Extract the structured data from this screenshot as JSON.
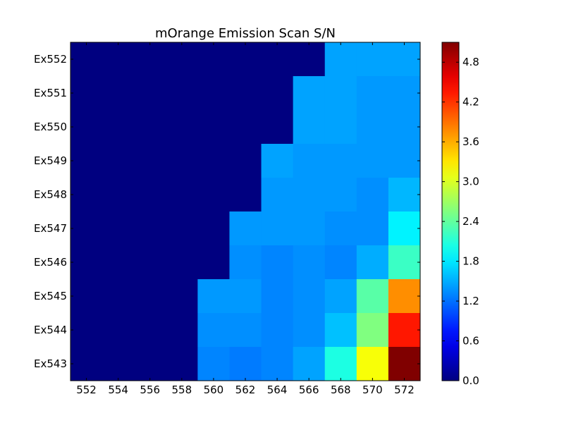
{
  "chart_data": {
    "type": "heatmap",
    "title": "mOrange Emission Scan S/N",
    "x_tick_labels": [
      "552",
      "554",
      "556",
      "558",
      "560",
      "562",
      "564",
      "566",
      "568",
      "570",
      "572"
    ],
    "emission_columns": [
      552,
      554,
      556,
      558,
      560,
      562,
      564,
      566,
      568,
      570,
      572
    ],
    "excitation_rows": [
      "Ex552",
      "Ex551",
      "Ex550",
      "Ex549",
      "Ex548",
      "Ex547",
      "Ex546",
      "Ex545",
      "Ex544",
      "Ex543"
    ],
    "values": [
      [
        0,
        0,
        0,
        0,
        0,
        0,
        0,
        0,
        1.45,
        1.45,
        1.45
      ],
      [
        0,
        0,
        0,
        0,
        0,
        0,
        0,
        1.45,
        1.45,
        1.4,
        1.4
      ],
      [
        0,
        0,
        0,
        0,
        0,
        0,
        0,
        1.45,
        1.45,
        1.4,
        1.4
      ],
      [
        0,
        0,
        0,
        0,
        0,
        0,
        1.45,
        1.4,
        1.4,
        1.4,
        1.4
      ],
      [
        0,
        0,
        0,
        0,
        0,
        0,
        1.4,
        1.4,
        1.4,
        1.35,
        1.55
      ],
      [
        0,
        0,
        0,
        0,
        0,
        1.4,
        1.4,
        1.4,
        1.35,
        1.35,
        1.85
      ],
      [
        0,
        0,
        0,
        0,
        0,
        1.35,
        1.3,
        1.35,
        1.3,
        1.5,
        2.2
      ],
      [
        0,
        0,
        0,
        0,
        1.4,
        1.4,
        1.3,
        1.35,
        1.45,
        2.35,
        3.75
      ],
      [
        0,
        0,
        0,
        0,
        1.35,
        1.35,
        1.3,
        1.35,
        1.6,
        2.55,
        4.35
      ],
      [
        0,
        0,
        0,
        0,
        1.3,
        1.25,
        1.3,
        1.45,
        2.05,
        3.15,
        5.1
      ]
    ],
    "colorbar": {
      "colormap": "jet",
      "vmin": 0,
      "vmax": 5.1,
      "ticks": [
        0.0,
        0.6,
        1.2,
        1.8,
        2.4,
        3.0,
        3.6,
        4.2,
        4.8
      ],
      "tick_labels": [
        "0.0",
        "0.6",
        "1.2",
        "1.8",
        "2.4",
        "3.0",
        "3.6",
        "4.2",
        "4.8"
      ]
    },
    "grid": false,
    "legend": "none"
  }
}
